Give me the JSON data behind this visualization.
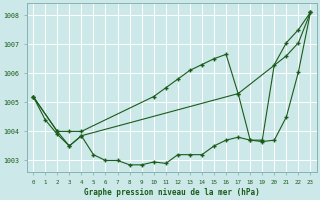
{
  "xlabel": "Graphe pression niveau de la mer (hPa)",
  "bg_color": "#cce8e8",
  "grid_color": "#b0d8d8",
  "line_color": "#1a5c1a",
  "marker_color": "#1a5c1a",
  "ylim": [
    1002.6,
    1008.4
  ],
  "xlim": [
    -0.5,
    23.5
  ],
  "yticks": [
    1003,
    1004,
    1005,
    1006,
    1007,
    1008
  ],
  "xticks": [
    0,
    1,
    2,
    3,
    4,
    5,
    6,
    7,
    8,
    9,
    10,
    11,
    12,
    13,
    14,
    15,
    16,
    17,
    18,
    19,
    20,
    21,
    22,
    23
  ],
  "series": [
    {
      "x": [
        0,
        1,
        2,
        3,
        4,
        5,
        6,
        7,
        8,
        9,
        10,
        11,
        12,
        13,
        14,
        15,
        16,
        17,
        18,
        19,
        20,
        21,
        22,
        23
      ],
      "y": [
        1005.2,
        1004.4,
        1003.9,
        1003.5,
        1003.85,
        1003.2,
        1003.0,
        1003.0,
        1002.85,
        1002.85,
        1002.95,
        1002.9,
        1003.2,
        1003.2,
        1003.2,
        1003.5,
        1003.7,
        1003.8,
        1003.7,
        1003.7,
        1006.3,
        1007.05,
        1007.5,
        1008.1
      ]
    },
    {
      "x": [
        0,
        2,
        3,
        4,
        10,
        11,
        12,
        13,
        14,
        15,
        16,
        17,
        21,
        22,
        23
      ],
      "y": [
        1005.2,
        1004.0,
        1004.0,
        1004.0,
        1005.2,
        1005.5,
        1005.8,
        1006.1,
        1006.3,
        1006.5,
        1006.65,
        1005.3,
        1006.6,
        1007.05,
        1008.1
      ]
    },
    {
      "x": [
        0,
        2,
        3,
        4,
        17,
        18,
        19,
        20,
        21,
        22,
        23
      ],
      "y": [
        1005.2,
        1004.0,
        1003.5,
        1003.85,
        1005.3,
        1003.7,
        1003.65,
        1003.7,
        1004.5,
        1006.05,
        1008.1
      ]
    }
  ]
}
